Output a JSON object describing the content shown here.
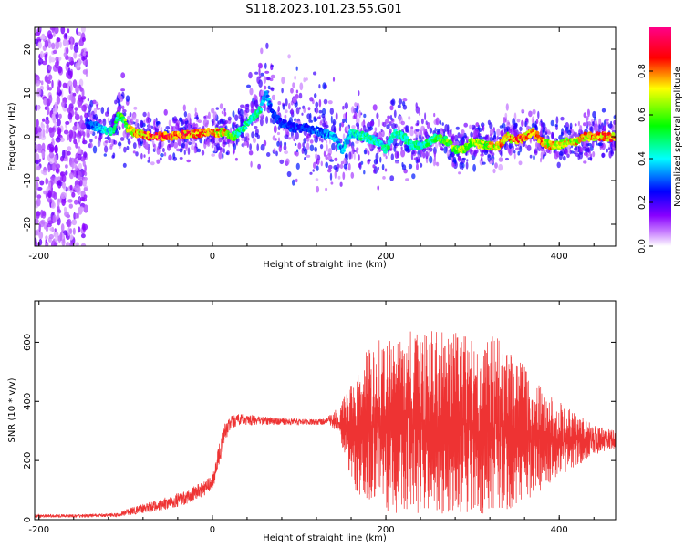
{
  "title": "S118.2023.101.23.55.G01",
  "chart_data": [
    {
      "type": "heatmap",
      "xlabel": "Height of straight line (km)",
      "ylabel": "Frequency (Hz)",
      "xlim": [
        -205,
        465
      ],
      "ylim": [
        -25,
        25
      ],
      "x_ticks": [
        -200,
        0,
        200,
        400
      ],
      "y_ticks": [
        -20,
        -10,
        0,
        10,
        20
      ],
      "colorbar": {
        "label": "Normalized spectral amplitude",
        "range": [
          0,
          1
        ],
        "ticks": [
          0.0,
          0.2,
          0.4,
          0.6,
          0.8
        ],
        "colors": [
          "#ffffff",
          "#8800ff",
          "#0000ff",
          "#00ffff",
          "#00ff00",
          "#ffff00",
          "#ff0000",
          "#ff0088"
        ]
      },
      "ridge": {
        "x": [
          -145,
          -130,
          -115,
          -108,
          -103,
          -98,
          -90,
          -70,
          -50,
          -30,
          0,
          15,
          25,
          35,
          45,
          55,
          62,
          70,
          80,
          95,
          110,
          125,
          140,
          150,
          160,
          175,
          190,
          200,
          210,
          220,
          230,
          240,
          250,
          260,
          270,
          280,
          290,
          300,
          315,
          330,
          340,
          350,
          360,
          370,
          380,
          390,
          400,
          410,
          420,
          430,
          445,
          465
        ],
        "y": [
          3,
          2,
          1,
          5,
          4,
          2,
          1,
          0,
          0,
          0.5,
          1,
          1,
          0,
          2,
          4,
          6,
          10,
          5,
          3,
          2,
          2,
          1,
          0,
          -3,
          1,
          0,
          -1,
          -3,
          1,
          0,
          -2,
          -2,
          -1,
          0,
          -1,
          -3,
          -3,
          -1,
          -2,
          -2,
          0,
          -1,
          0,
          1,
          -1,
          -2,
          -2,
          -1,
          -1,
          0,
          0,
          0
        ],
        "amplitude": [
          0.3,
          0.4,
          0.5,
          0.6,
          0.6,
          0.7,
          0.8,
          0.95,
          0.95,
          0.9,
          0.9,
          0.8,
          0.6,
          0.5,
          0.5,
          0.5,
          0.4,
          0.3,
          0.3,
          0.3,
          0.3,
          0.35,
          0.4,
          0.4,
          0.45,
          0.5,
          0.5,
          0.5,
          0.5,
          0.5,
          0.5,
          0.5,
          0.55,
          0.6,
          0.65,
          0.7,
          0.7,
          0.7,
          0.75,
          0.8,
          0.85,
          0.9,
          0.9,
          0.85,
          0.85,
          0.8,
          0.8,
          0.8,
          0.8,
          0.85,
          0.9,
          0.9
        ]
      }
    },
    {
      "type": "line",
      "xlabel": "Height of straight line (km)",
      "ylabel": "SNR (10 * v/v)",
      "xlim": [
        -205,
        465
      ],
      "ylim": [
        0,
        740
      ],
      "x_ticks": [
        -200,
        0,
        200,
        400
      ],
      "y_ticks": [
        0,
        200,
        400,
        600
      ],
      "color": "#ee3333",
      "envelope": {
        "x": [
          -205,
          -150,
          -110,
          -95,
          -60,
          -30,
          -10,
          0,
          5,
          10,
          15,
          20,
          30,
          50,
          80,
          110,
          130,
          145,
          155,
          165,
          175,
          185,
          200,
          230,
          260,
          300,
          330,
          360,
          390,
          420,
          440,
          465
        ],
        "lower": [
          8,
          8,
          10,
          15,
          30,
          50,
          80,
          100,
          150,
          200,
          260,
          300,
          320,
          320,
          320,
          320,
          320,
          300,
          180,
          100,
          60,
          40,
          20,
          20,
          20,
          20,
          20,
          60,
          120,
          180,
          220,
          240
        ],
        "upper": [
          18,
          18,
          22,
          40,
          70,
          100,
          130,
          150,
          220,
          290,
          330,
          350,
          360,
          350,
          345,
          340,
          340,
          380,
          440,
          500,
          560,
          600,
          620,
          640,
          640,
          640,
          620,
          520,
          420,
          360,
          320,
          300
        ]
      }
    }
  ]
}
